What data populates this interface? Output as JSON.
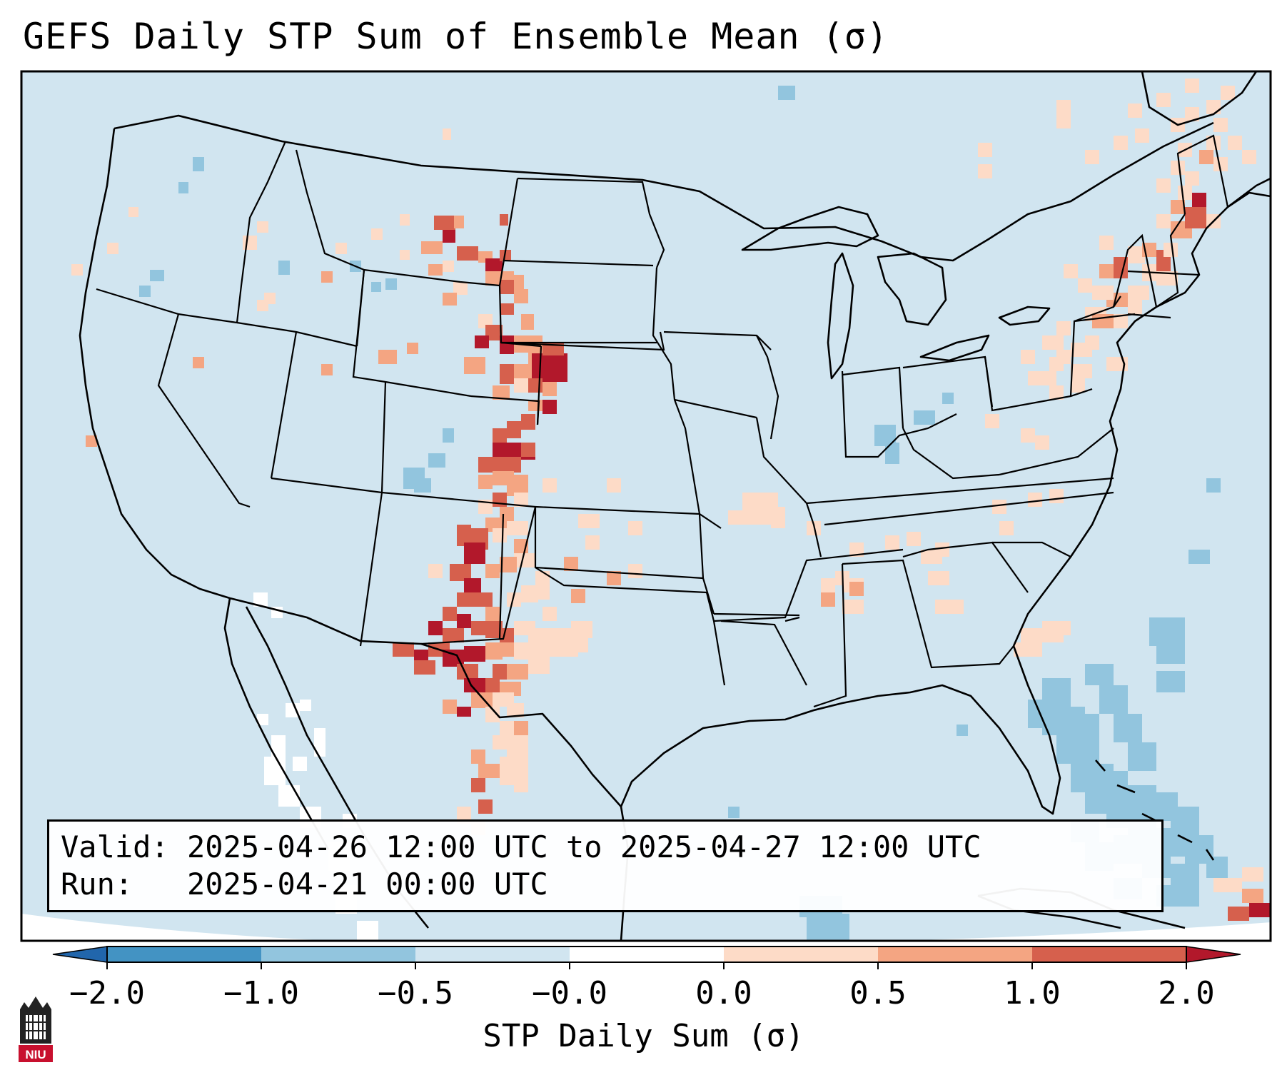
{
  "title": "GEFS Daily STP Sum of Ensemble Mean (σ)",
  "info": {
    "valid_label": "Valid:",
    "valid_value": "2025-04-26 12:00 UTC to 2025-04-27 12:00 UTC",
    "run_label": "Run:",
    "run_value": "2025-04-21 00:00 UTC"
  },
  "colorbar": {
    "label": "STP Daily Sum (σ)",
    "ticks": [
      "−2.0",
      "−1.0",
      "−0.5",
      "−0.0",
      "0.0",
      "0.5",
      "1.0",
      "2.0"
    ],
    "bin_colors": [
      "#4393c3",
      "#92c5de",
      "#d1e5f0",
      "#fddbc7",
      "#f4a582",
      "#d6604d"
    ],
    "under_color": "#2166ac",
    "over_color": "#b2182b"
  },
  "colors": {
    "ocean_background": "#d1e5f0",
    "outside_domain": "#ffffff",
    "strong_positive": "#b2182b",
    "moderate_positive": "#d6604d",
    "weak_positive": "#f4a582",
    "slight_positive": "#fddbc7",
    "slight_negative": "#92c5de",
    "moderate_negative": "#4393c3"
  },
  "logo": {
    "text": "NIU",
    "icon": "niu-logo-icon"
  }
}
